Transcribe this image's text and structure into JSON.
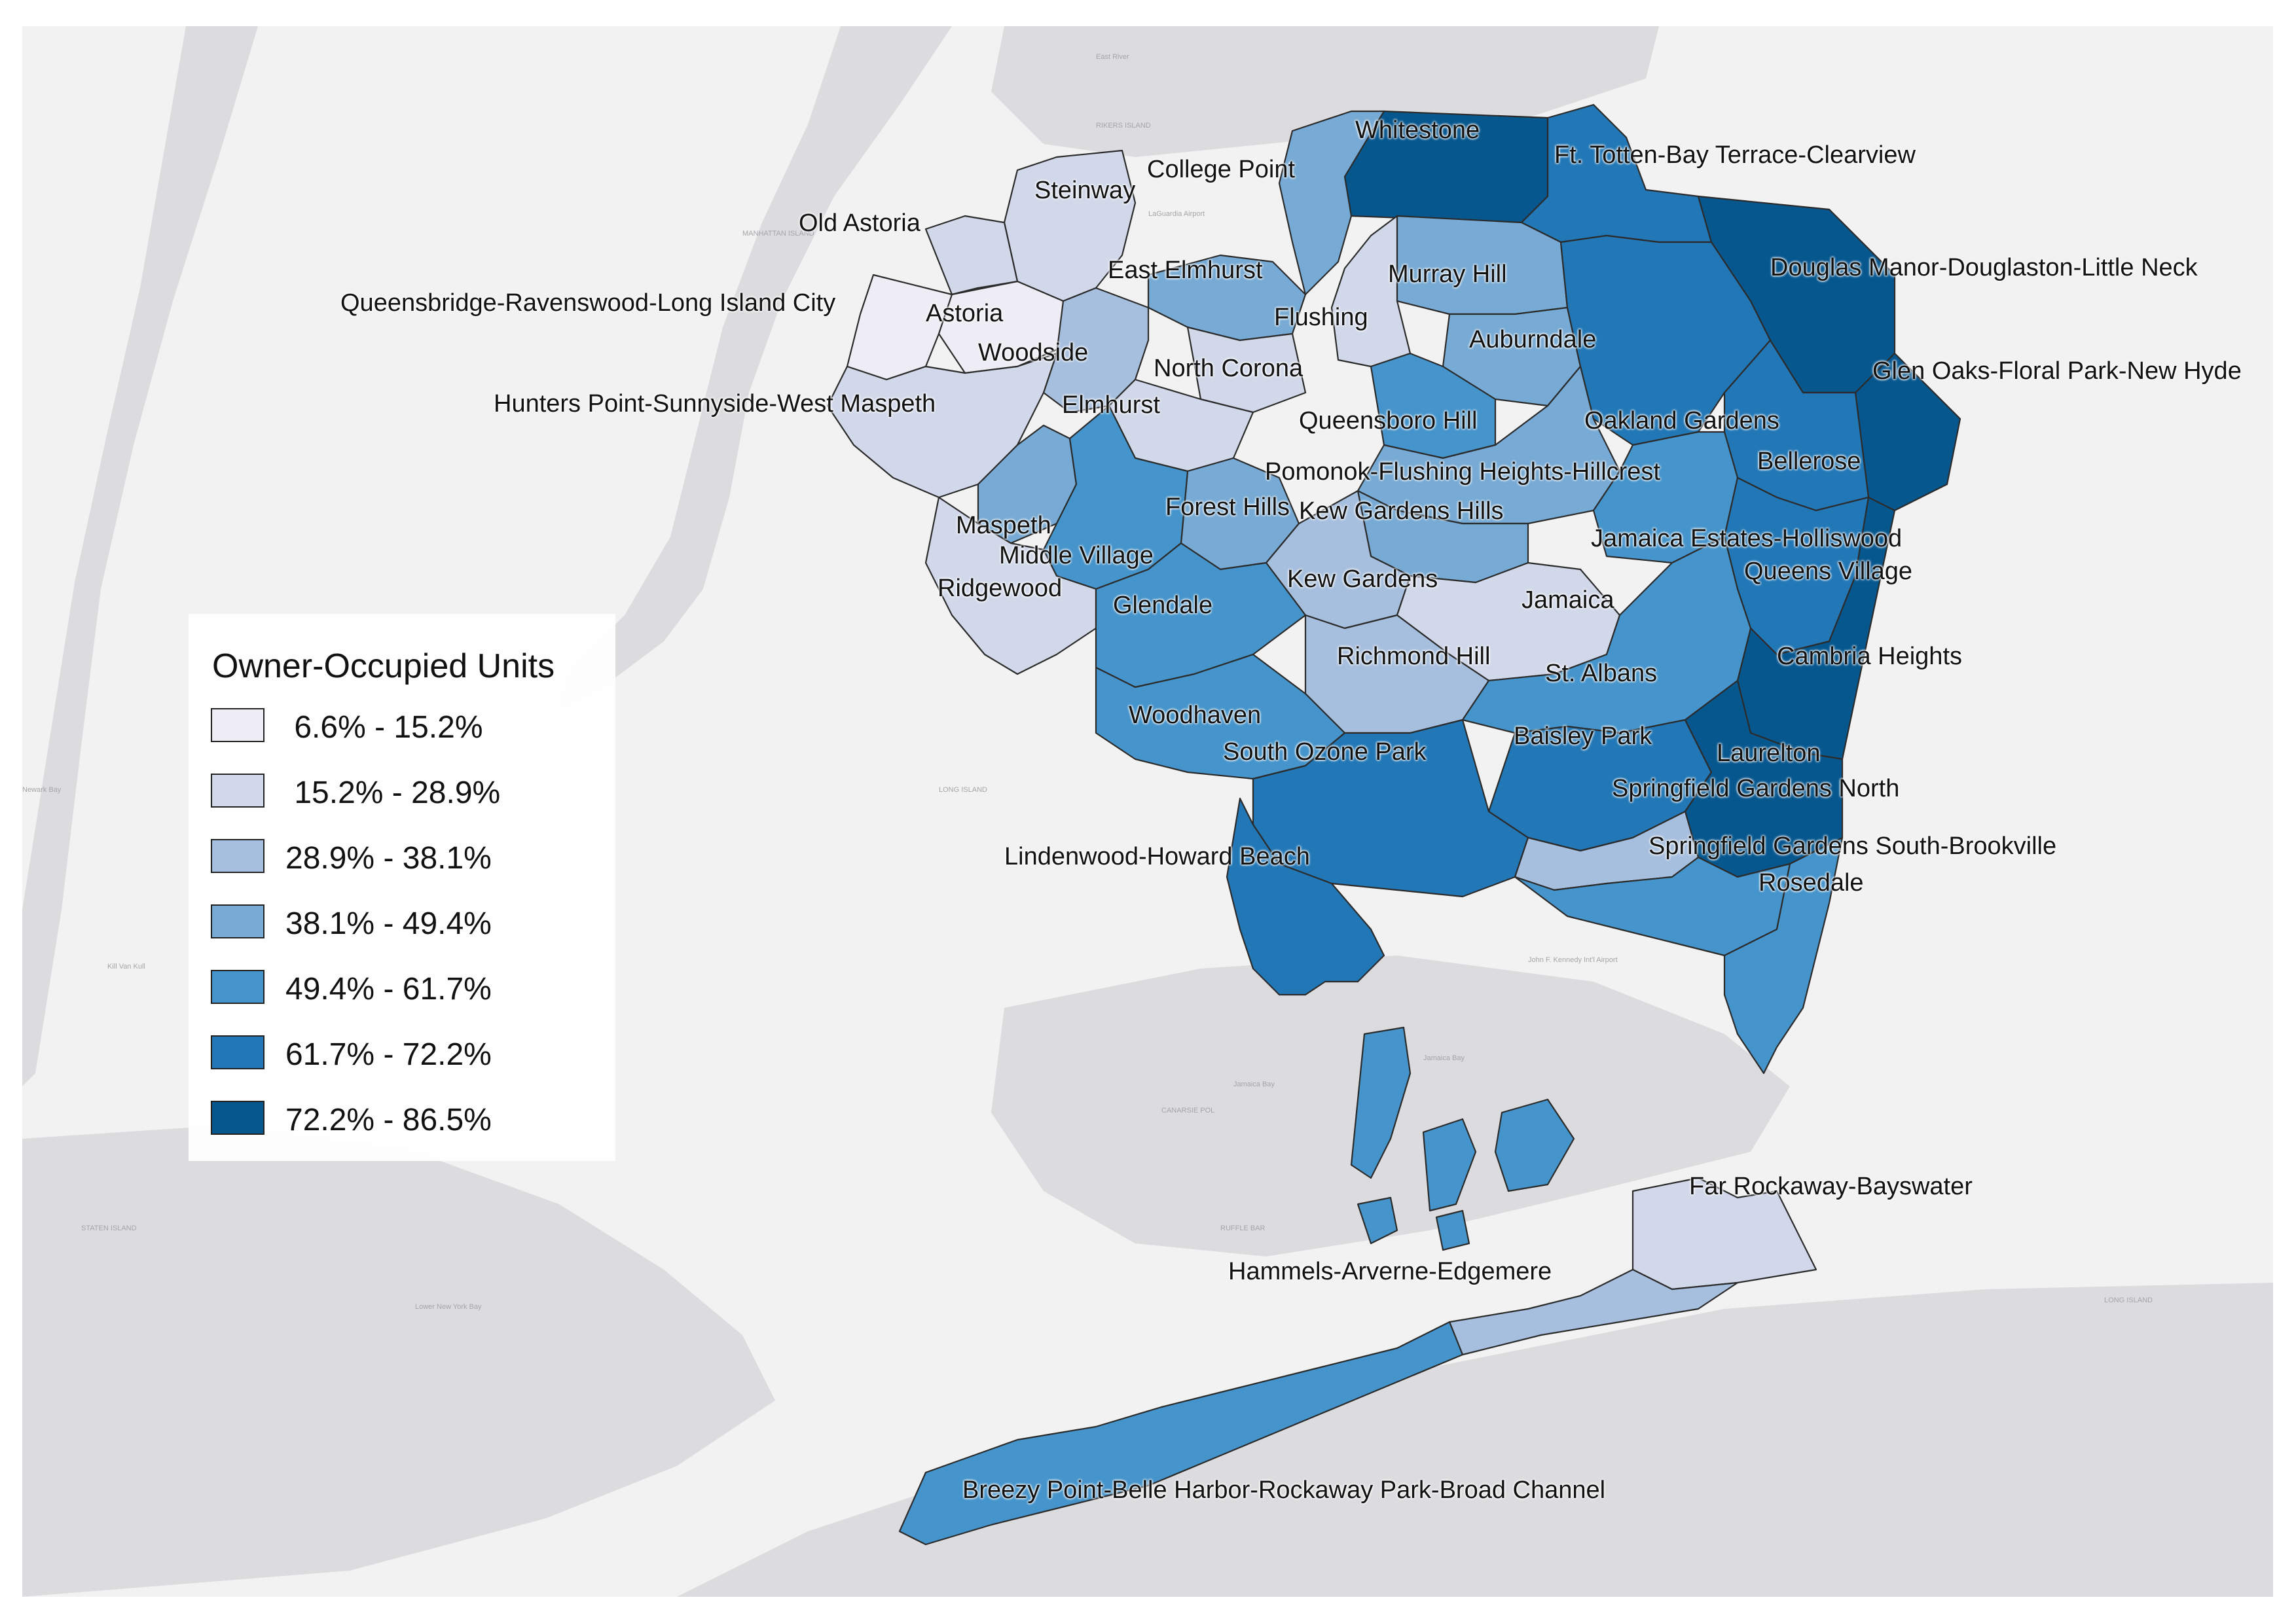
{
  "legend": {
    "title": "Owner-Occupied Units",
    "classes": [
      {
        "label": " 6.6% - 15.2%",
        "color": "#eeedf5"
      },
      {
        "label": " 15.2% - 28.9%",
        "color": "#d1d8ea"
      },
      {
        "label": "28.9% - 38.1%",
        "color": "#a7bfde"
      },
      {
        "label": "38.1% - 49.4%",
        "color": "#77aad4"
      },
      {
        "label": "49.4% - 61.7%",
        "color": "#4594cb"
      },
      {
        "label": "61.7% - 72.2%",
        "color": "#2277b6"
      },
      {
        "label": "72.2% - 86.5%",
        "color": "#07578f"
      }
    ]
  },
  "neighborhoods": [
    {
      "name": "Whitestone",
      "class": 6
    },
    {
      "name": "Ft. Totten-Bay Terrace-Clearview",
      "class": 5
    },
    {
      "name": "College Point",
      "class": 3
    },
    {
      "name": "Steinway",
      "class": 1
    },
    {
      "name": "Old Astoria",
      "class": 1
    },
    {
      "name": "Douglas Manor-Douglaston-Little Neck",
      "class": 6
    },
    {
      "name": "East Elmhurst",
      "class": 3
    },
    {
      "name": "Murray Hill",
      "class": 3
    },
    {
      "name": "Queensbridge-Ravenswood-Long Island City",
      "class": 0
    },
    {
      "name": "Astoria",
      "class": 0
    },
    {
      "name": "Flushing",
      "class": 1
    },
    {
      "name": "Auburndale",
      "class": 3
    },
    {
      "name": "Woodside",
      "class": 2
    },
    {
      "name": "Glen Oaks-Floral Park-New Hyde",
      "class": 6
    },
    {
      "name": "North Corona",
      "class": 1
    },
    {
      "name": "Hunters Point-Sunnyside-West Maspeth",
      "class": 1
    },
    {
      "name": "Elmhurst",
      "class": 1
    },
    {
      "name": "Queensboro Hill",
      "class": 4
    },
    {
      "name": "Oakland Gardens",
      "class": 5
    },
    {
      "name": "Bellerose",
      "class": 5
    },
    {
      "name": "Pomonok-Flushing Heights-Hillcrest",
      "class": 3
    },
    {
      "name": "Forest Hills",
      "class": 3
    },
    {
      "name": "Kew Gardens Hills",
      "class": 3
    },
    {
      "name": "Maspeth",
      "class": 3
    },
    {
      "name": "Middle Village",
      "class": 4
    },
    {
      "name": "Jamaica Estates-Holliswood",
      "class": 4
    },
    {
      "name": "Queens Village",
      "class": 5
    },
    {
      "name": "Ridgewood",
      "class": 1
    },
    {
      "name": "Kew Gardens",
      "class": 2
    },
    {
      "name": "Jamaica",
      "class": 1
    },
    {
      "name": "Glendale",
      "class": 4
    },
    {
      "name": "Richmond Hill",
      "class": 2
    },
    {
      "name": "Cambria Heights",
      "class": 6
    },
    {
      "name": "St. Albans",
      "class": 4
    },
    {
      "name": "Woodhaven",
      "class": 4
    },
    {
      "name": "Baisley Park",
      "class": 5
    },
    {
      "name": "Laurelton",
      "class": 6
    },
    {
      "name": "South Ozone Park",
      "class": 5
    },
    {
      "name": "Springfield Gardens North",
      "class": 2
    },
    {
      "name": "Lindenwood-Howard Beach",
      "class": 5
    },
    {
      "name": "Springfield Gardens South-Brookville",
      "class": 4
    },
    {
      "name": "Rosedale",
      "class": 4
    },
    {
      "name": "Far Rockaway-Bayswater",
      "class": 1
    },
    {
      "name": "Hammels-Arverne-Edgemere",
      "class": 2
    },
    {
      "name": "Breezy Point-Belle Harbor-Rockaway Park-Broad Channel",
      "class": 4
    }
  ],
  "basemap_labels": [
    "East River",
    "RIKERS ISLAND",
    "MANHATTAN ISLAND",
    "LaGuardia Airport",
    "LONG ISLAND",
    "Jamaica Bay",
    "CANARSIE POL",
    "RUFFLE BAR",
    "John F. Kennedy Int'l Airport",
    "STATEN ISLAND",
    "Lower New York Bay",
    "Newark Bay",
    "Kill Van Kull",
    "LONG ISLAND",
    "Jamaica Bay"
  ]
}
